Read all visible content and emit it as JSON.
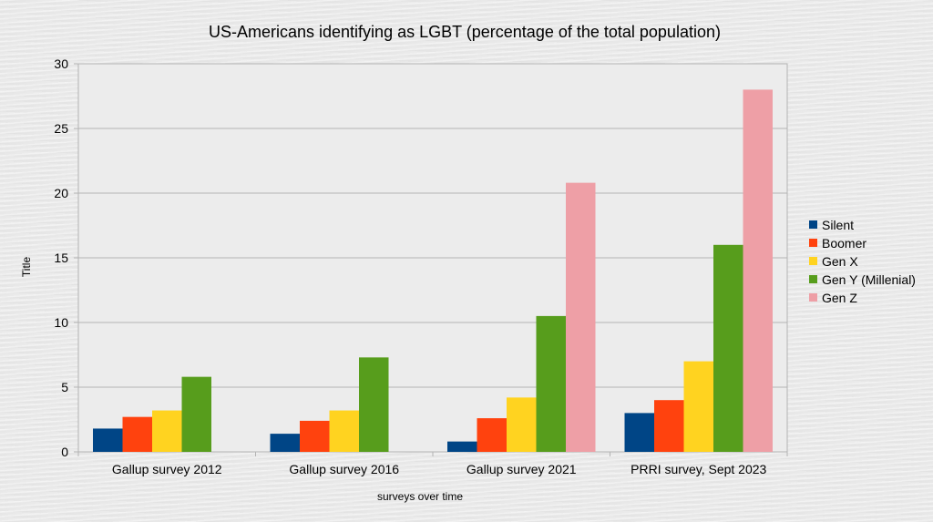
{
  "chart_data": {
    "type": "bar",
    "title": "US-Americans identifying as LGBT (percentage of the total population)",
    "xlabel": "surveys over time",
    "ylabel": "Title",
    "ylim": [
      0,
      30
    ],
    "yticks": [
      0,
      5,
      10,
      15,
      20,
      25,
      30
    ],
    "grid": true,
    "legend_position": "right",
    "categories": [
      "Gallup survey 2012",
      "Gallup survey 2016",
      "Gallup survey 2021",
      "PRRI survey, Sept 2023"
    ],
    "series": [
      {
        "name": "Silent",
        "color": "#004586",
        "values": [
          1.8,
          1.4,
          0.8,
          3.0
        ]
      },
      {
        "name": "Boomer",
        "color": "#ff420e",
        "values": [
          2.7,
          2.4,
          2.6,
          4.0
        ]
      },
      {
        "name": "Gen X",
        "color": "#ffd320",
        "values": [
          3.2,
          3.2,
          4.2,
          7.0
        ]
      },
      {
        "name": "Gen Y (Millenial)",
        "color": "#579d1c",
        "values": [
          5.8,
          7.3,
          10.5,
          16.0
        ]
      },
      {
        "name": "Gen Z",
        "color": "#ee9fa6",
        "values": [
          null,
          null,
          20.8,
          28.0
        ]
      }
    ]
  }
}
